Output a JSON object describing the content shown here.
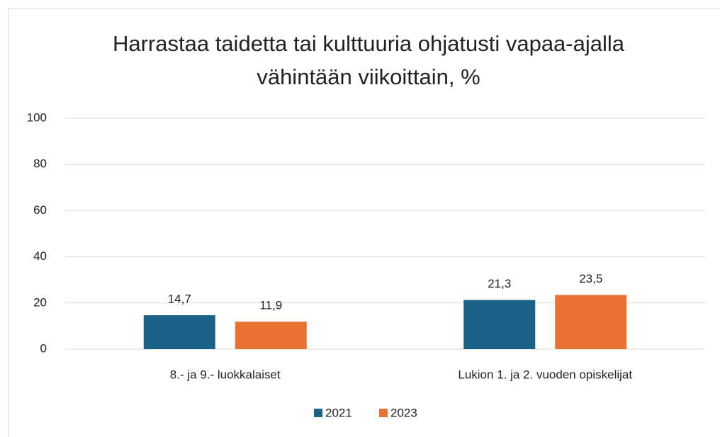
{
  "chart_data": {
    "type": "bar",
    "title": "Harrastaa taidetta tai kulttuuria ohjatusti vapaa-ajalla vähintään viikoittain, %",
    "categories": [
      "8.- ja 9.- luokkalaiset",
      "Lukion 1. ja 2. vuoden opiskelijat"
    ],
    "series": [
      {
        "name": "2021",
        "color": "#1b6289",
        "values": [
          14.7,
          21.3
        ],
        "value_labels": [
          "14,7",
          "21,3"
        ]
      },
      {
        "name": "2023",
        "color": "#e97132",
        "values": [
          11.9,
          23.5
        ],
        "value_labels": [
          "11,9",
          "23,5"
        ]
      }
    ],
    "ylim": [
      0,
      100
    ],
    "yticks": [
      0,
      20,
      40,
      60,
      80,
      100
    ],
    "grid": true,
    "legend": "bottom"
  }
}
